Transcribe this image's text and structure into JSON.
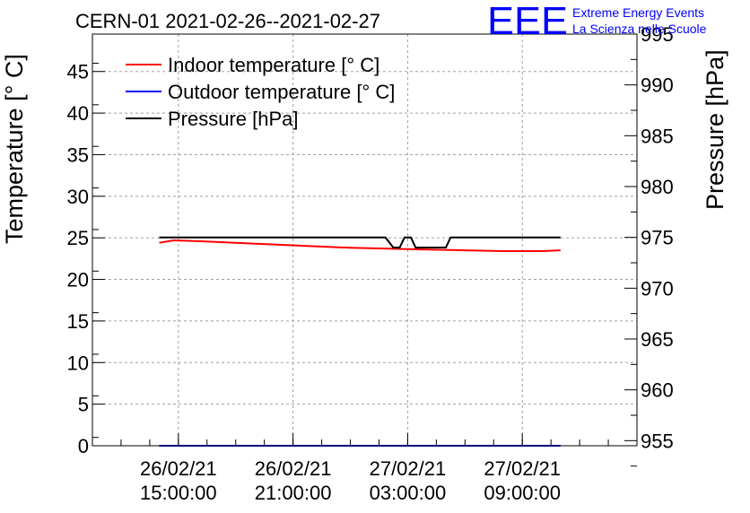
{
  "chart_data": {
    "type": "line",
    "title": "CERN-01 2021-02-26--2021-02-27",
    "logo": {
      "mark": "EEE",
      "line1": "Extreme Energy Events",
      "line2": "La Scienza nelle Scuole",
      "color": "#0000ff"
    },
    "ylabel": "Temperature [° C]",
    "y2label": "Pressure [hPa]",
    "ylim": [
      0,
      49.5
    ],
    "y2lim": [
      954.5,
      995
    ],
    "yticks": [
      "0",
      "5",
      "10",
      "15",
      "20",
      "25",
      "30",
      "35",
      "40",
      "45"
    ],
    "y2ticks": [
      "955",
      "960",
      "965",
      "970",
      "975",
      "980",
      "985",
      "990",
      "995"
    ],
    "xlim": [
      "2021-02-26 10:30",
      "2021-02-27 15:00"
    ],
    "xticks": [
      {
        "x": "2021-02-26 15:00",
        "date": "26/02/21",
        "time": "15:00:00"
      },
      {
        "x": "2021-02-26 21:00",
        "date": "26/02/21",
        "time": "21:00:00"
      },
      {
        "x": "2021-02-27 03:00",
        "date": "27/02/21",
        "time": "03:00:00"
      },
      {
        "x": "2021-02-27 09:00",
        "date": "27/02/21",
        "time": "09:00:00"
      }
    ],
    "grid": true,
    "legend_position": "top-left",
    "series": [
      {
        "name": "Indoor temperature [° C]",
        "axis": "left",
        "color": "#ff0000",
        "points": [
          [
            "2021-02-26 14:00",
            24.4
          ],
          [
            "2021-02-26 14:45",
            24.7
          ],
          [
            "2021-02-26 16:00",
            24.6
          ],
          [
            "2021-02-26 18:00",
            24.4
          ],
          [
            "2021-02-26 20:00",
            24.2
          ],
          [
            "2021-02-26 22:00",
            24.0
          ],
          [
            "2021-02-27 00:00",
            23.8
          ],
          [
            "2021-02-27 02:00",
            23.7
          ],
          [
            "2021-02-27 04:00",
            23.6
          ],
          [
            "2021-02-27 06:00",
            23.5
          ],
          [
            "2021-02-27 08:00",
            23.4
          ],
          [
            "2021-02-27 10:00",
            23.4
          ],
          [
            "2021-02-27 11:00",
            23.5
          ]
        ]
      },
      {
        "name": "Outdoor temperature [° C]",
        "axis": "left",
        "color": "#0000ff",
        "points": [
          [
            "2021-02-26 14:00",
            0
          ],
          [
            "2021-02-27 11:00",
            0
          ]
        ]
      },
      {
        "name": "Pressure [hPa]",
        "axis": "right",
        "color": "#000000",
        "points": [
          [
            "2021-02-26 14:00",
            975
          ],
          [
            "2021-02-27 01:50",
            975
          ],
          [
            "2021-02-27 02:15",
            974
          ],
          [
            "2021-02-27 02:35",
            974
          ],
          [
            "2021-02-27 02:50",
            975
          ],
          [
            "2021-02-27 03:10",
            975
          ],
          [
            "2021-02-27 03:25",
            974
          ],
          [
            "2021-02-27 05:00",
            974
          ],
          [
            "2021-02-27 05:15",
            975
          ],
          [
            "2021-02-27 11:00",
            975
          ]
        ]
      }
    ]
  }
}
